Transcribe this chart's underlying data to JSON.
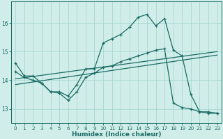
{
  "xlabel": "Humidex (Indice chaleur)",
  "bg_color": "#d0ede9",
  "grid_color": "#a8d8d2",
  "line_color": "#1a6b64",
  "xlim": [
    -0.5,
    23.5
  ],
  "ylim": [
    12.5,
    16.75
  ],
  "yticks": [
    13,
    14,
    15,
    16
  ],
  "xticks": [
    0,
    1,
    2,
    3,
    4,
    5,
    6,
    7,
    8,
    9,
    10,
    11,
    12,
    13,
    14,
    15,
    16,
    17,
    18,
    19,
    20,
    21,
    22,
    23
  ],
  "main_x": [
    0,
    1,
    2,
    3,
    4,
    5,
    6,
    7,
    8,
    9,
    10,
    11,
    12,
    13,
    14,
    15,
    16,
    17,
    18,
    19,
    20,
    21,
    22,
    23
  ],
  "main_y": [
    14.6,
    14.15,
    14.15,
    13.9,
    13.6,
    13.6,
    13.45,
    13.85,
    14.4,
    14.4,
    15.3,
    15.45,
    15.6,
    15.85,
    16.2,
    16.3,
    15.9,
    16.15,
    15.05,
    14.85,
    13.5,
    12.9,
    12.9,
    12.85
  ],
  "bot_x": [
    0,
    1,
    2,
    3,
    4,
    5,
    6,
    7,
    8,
    9,
    10,
    11,
    12,
    13,
    14,
    15,
    16,
    17,
    18,
    19,
    20,
    21,
    22,
    23
  ],
  "bot_y": [
    14.3,
    14.1,
    14.0,
    13.9,
    13.6,
    13.55,
    13.3,
    13.6,
    14.1,
    14.25,
    14.45,
    14.5,
    14.65,
    14.75,
    14.85,
    14.95,
    15.05,
    15.1,
    13.2,
    13.05,
    13.0,
    12.9,
    12.85,
    12.85
  ],
  "trend1_x": [
    0,
    23
  ],
  "trend1_y": [
    14.05,
    15.0
  ],
  "trend2_x": [
    0,
    23
  ],
  "trend2_y": [
    13.85,
    14.88
  ]
}
